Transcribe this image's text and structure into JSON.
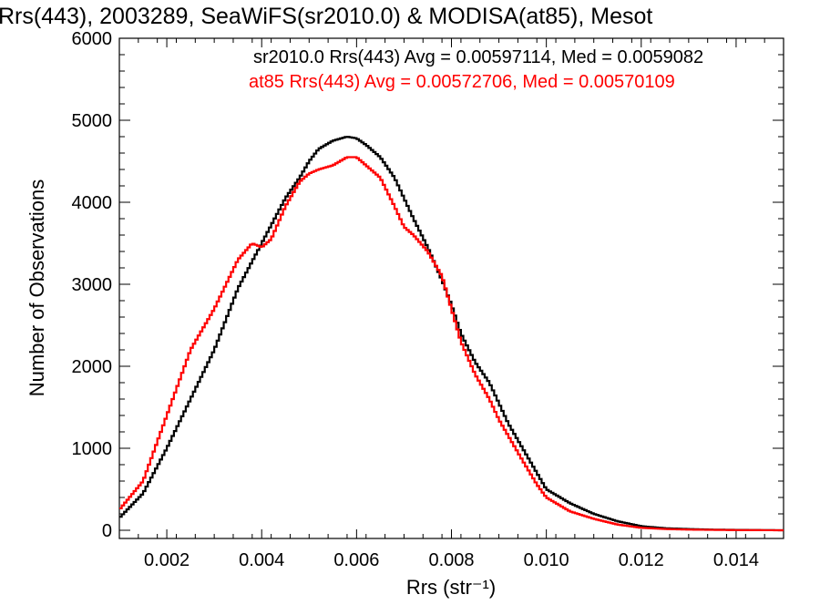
{
  "chart_data": {
    "type": "line",
    "style": "step-histogram",
    "title": "Rrs(443), 2003289, SeaWiFS(sr2010.0) & MODISA(at85), Mesot",
    "xlabel": "Rrs (str⁻¹)",
    "ylabel": "Number of Observations",
    "xlim": [
      0.001,
      0.015
    ],
    "ylim": [
      -100,
      6000
    ],
    "x_ticks": [
      {
        "value": 0.002,
        "label": "0.002"
      },
      {
        "value": 0.004,
        "label": "0.004"
      },
      {
        "value": 0.006,
        "label": "0.006"
      },
      {
        "value": 0.008,
        "label": "0.008"
      },
      {
        "value": 0.01,
        "label": "0.010"
      },
      {
        "value": 0.012,
        "label": "0.012"
      },
      {
        "value": 0.014,
        "label": "0.014"
      }
    ],
    "y_ticks": [
      {
        "value": 0,
        "label": "0"
      },
      {
        "value": 1000,
        "label": "1000"
      },
      {
        "value": 2000,
        "label": "2000"
      },
      {
        "value": 3000,
        "label": "3000"
      },
      {
        "value": 4000,
        "label": "4000"
      },
      {
        "value": 5000,
        "label": "5000"
      },
      {
        "value": 6000,
        "label": "6000"
      }
    ],
    "grid": false,
    "legend_placement": "top-right",
    "series": [
      {
        "name": "sr2010.0 Rrs(443) Avg = 0.00597114, Med = 0.0059082",
        "color": "#000000",
        "x": [
          0.001,
          0.0015,
          0.002,
          0.0025,
          0.003,
          0.0035,
          0.004,
          0.0045,
          0.0048,
          0.005,
          0.0052,
          0.0055,
          0.0058,
          0.006,
          0.0062,
          0.0065,
          0.0068,
          0.007,
          0.0072,
          0.0075,
          0.0078,
          0.008,
          0.0082,
          0.0085,
          0.0088,
          0.009,
          0.0092,
          0.0095,
          0.0098,
          0.01,
          0.0105,
          0.011,
          0.0115,
          0.012,
          0.0125,
          0.013,
          0.0135,
          0.014,
          0.015
        ],
        "y": [
          150,
          450,
          1000,
          1600,
          2200,
          2950,
          3500,
          4050,
          4300,
          4500,
          4650,
          4750,
          4800,
          4780,
          4700,
          4550,
          4300,
          4050,
          3800,
          3450,
          3050,
          2750,
          2400,
          2050,
          1800,
          1550,
          1300,
          1000,
          700,
          500,
          330,
          200,
          110,
          50,
          25,
          15,
          8,
          5,
          0
        ]
      },
      {
        "name": "at85 Rrs(443) Avg = 0.00572706, Med = 0.00570109",
        "color": "#ff0000",
        "x": [
          0.001,
          0.0015,
          0.002,
          0.0025,
          0.003,
          0.0035,
          0.0038,
          0.004,
          0.0042,
          0.0045,
          0.0048,
          0.005,
          0.0052,
          0.0055,
          0.0058,
          0.006,
          0.0062,
          0.0065,
          0.0068,
          0.007,
          0.0072,
          0.0075,
          0.0078,
          0.008,
          0.0082,
          0.0085,
          0.0088,
          0.009,
          0.0092,
          0.0095,
          0.0098,
          0.01,
          0.0105,
          0.011,
          0.0115,
          0.012,
          0.0125,
          0.013,
          0.0135,
          0.014,
          0.015
        ],
        "y": [
          250,
          600,
          1400,
          2200,
          2700,
          3300,
          3500,
          3450,
          3550,
          3950,
          4250,
          4350,
          4400,
          4450,
          4550,
          4550,
          4450,
          4300,
          3950,
          3700,
          3600,
          3400,
          3100,
          2700,
          2300,
          1900,
          1600,
          1350,
          1150,
          850,
          560,
          400,
          230,
          140,
          70,
          30,
          15,
          8,
          5,
          2,
          0
        ]
      }
    ]
  }
}
